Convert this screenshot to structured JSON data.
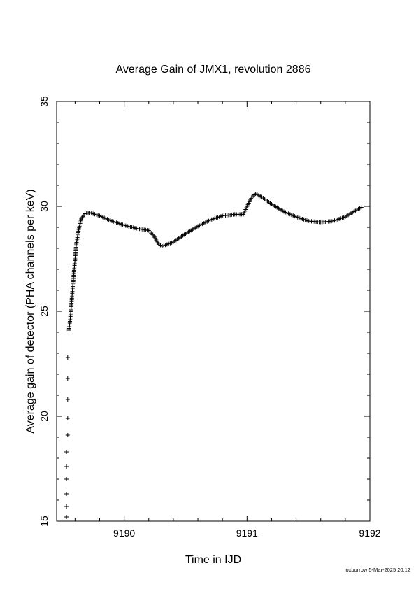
{
  "chart_data": {
    "type": "scatter",
    "title": "Average Gain of JMX1, revolution 2886",
    "xlabel": "Time in IJD",
    "ylabel": "Average gain of detector (PHA channels per keV)",
    "xlim": [
      9189.45,
      9192.0
    ],
    "ylim": [
      15,
      35
    ],
    "xticks": [
      9190,
      9191,
      9192
    ],
    "yticks": [
      15,
      20,
      25,
      30,
      35
    ],
    "marker": "plus",
    "grid": false,
    "series": [
      {
        "keypoints": [
          [
            9189.53,
            15.2
          ],
          [
            9189.53,
            15.7
          ],
          [
            9189.53,
            16.3
          ],
          [
            9189.53,
            17.0
          ],
          [
            9189.53,
            17.6
          ],
          [
            9189.53,
            18.3
          ],
          [
            9189.54,
            19.1
          ],
          [
            9189.54,
            19.9
          ],
          [
            9189.54,
            20.8
          ],
          [
            9189.54,
            21.8
          ],
          [
            9189.54,
            22.8
          ],
          [
            9189.55,
            24.1
          ],
          [
            9189.56,
            24.6
          ],
          [
            9189.57,
            25.3
          ],
          [
            9189.58,
            26.1
          ],
          [
            9189.59,
            26.8
          ],
          [
            9189.6,
            27.5
          ],
          [
            9189.61,
            28.2
          ],
          [
            9189.63,
            28.9
          ],
          [
            9189.65,
            29.4
          ],
          [
            9189.68,
            29.65
          ],
          [
            9189.72,
            29.7
          ],
          [
            9189.8,
            29.55
          ],
          [
            9189.9,
            29.3
          ],
          [
            9190.0,
            29.1
          ],
          [
            9190.1,
            28.95
          ],
          [
            9190.2,
            28.85
          ],
          [
            9190.24,
            28.6
          ],
          [
            9190.28,
            28.2
          ],
          [
            9190.31,
            28.1
          ],
          [
            9190.4,
            28.3
          ],
          [
            9190.5,
            28.7
          ],
          [
            9190.6,
            29.05
          ],
          [
            9190.7,
            29.35
          ],
          [
            9190.8,
            29.55
          ],
          [
            9190.9,
            29.62
          ],
          [
            9190.97,
            29.62
          ],
          [
            9191.0,
            30.0
          ],
          [
            9191.04,
            30.45
          ],
          [
            9191.07,
            30.6
          ],
          [
            9191.12,
            30.45
          ],
          [
            9191.2,
            30.1
          ],
          [
            9191.3,
            29.75
          ],
          [
            9191.4,
            29.5
          ],
          [
            9191.5,
            29.3
          ],
          [
            9191.6,
            29.25
          ],
          [
            9191.7,
            29.3
          ],
          [
            9191.8,
            29.5
          ],
          [
            9191.87,
            29.75
          ],
          [
            9191.93,
            29.95
          ]
        ]
      }
    ]
  },
  "footer": "oxborrow  5-Mar-2025 20:12"
}
